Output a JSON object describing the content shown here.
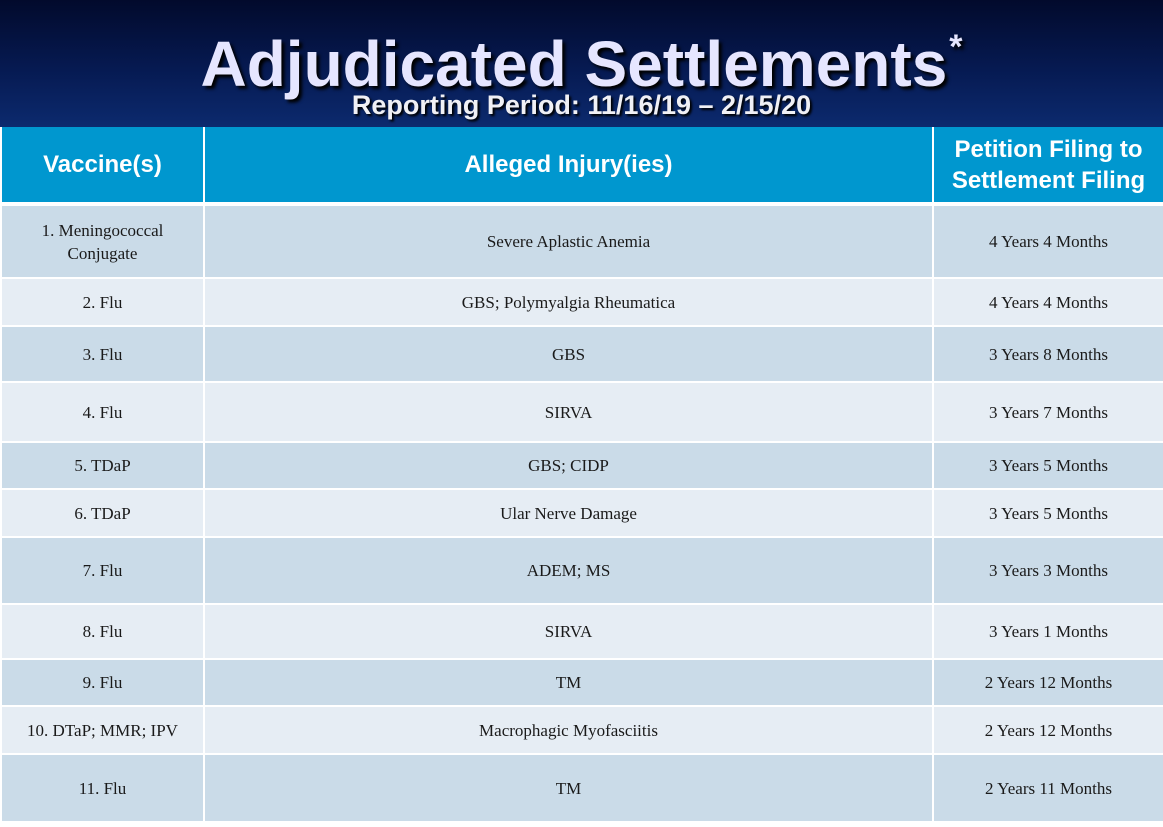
{
  "header": {
    "title": "Adjudicated Settlements",
    "title_marker": "*",
    "subtitle": "Reporting Period: 11/16/19 – 2/15/20"
  },
  "table": {
    "columns": [
      "Vaccine(s)",
      "Alleged Injury(ies)",
      "Petition Filing to Settlement Filing"
    ],
    "rows": [
      {
        "vaccine": "1. Meningococcal Conjugate",
        "injury": "Severe Aplastic Anemia",
        "duration": "4 Years 4 Months"
      },
      {
        "vaccine": "2. Flu",
        "injury": "GBS; Polymyalgia Rheumatica",
        "duration": "4 Years 4 Months"
      },
      {
        "vaccine": "3. Flu",
        "injury": "GBS",
        "duration": "3 Years 8 Months"
      },
      {
        "vaccine": "4. Flu",
        "injury": "SIRVA",
        "duration": "3 Years 7 Months"
      },
      {
        "vaccine": "5. TDaP",
        "injury": "GBS; CIDP",
        "duration": "3 Years 5 Months"
      },
      {
        "vaccine": "6. TDaP",
        "injury": "Ular Nerve Damage",
        "duration": "3 Years 5 Months"
      },
      {
        "vaccine": "7. Flu",
        "injury": "ADEM; MS",
        "duration": "3 Years 3 Months"
      },
      {
        "vaccine": "8. Flu",
        "injury": "SIRVA",
        "duration": "3 Years 1 Months"
      },
      {
        "vaccine": "9. Flu",
        "injury": "TM",
        "duration": "2 Years 12 Months"
      },
      {
        "vaccine": "10. DTaP; MMR; IPV",
        "injury": "Macrophagic Myofasciitis",
        "duration": "2 Years 12 Months"
      },
      {
        "vaccine": "11. Flu",
        "injury": "TM",
        "duration": "2 Years 11 Months"
      }
    ]
  },
  "colors": {
    "header_top": "#020a2c",
    "header_bottom": "#0c2a6e",
    "column_header": "#0097cf",
    "row_dark": "#cadbe8",
    "row_light": "#e6edf4"
  }
}
